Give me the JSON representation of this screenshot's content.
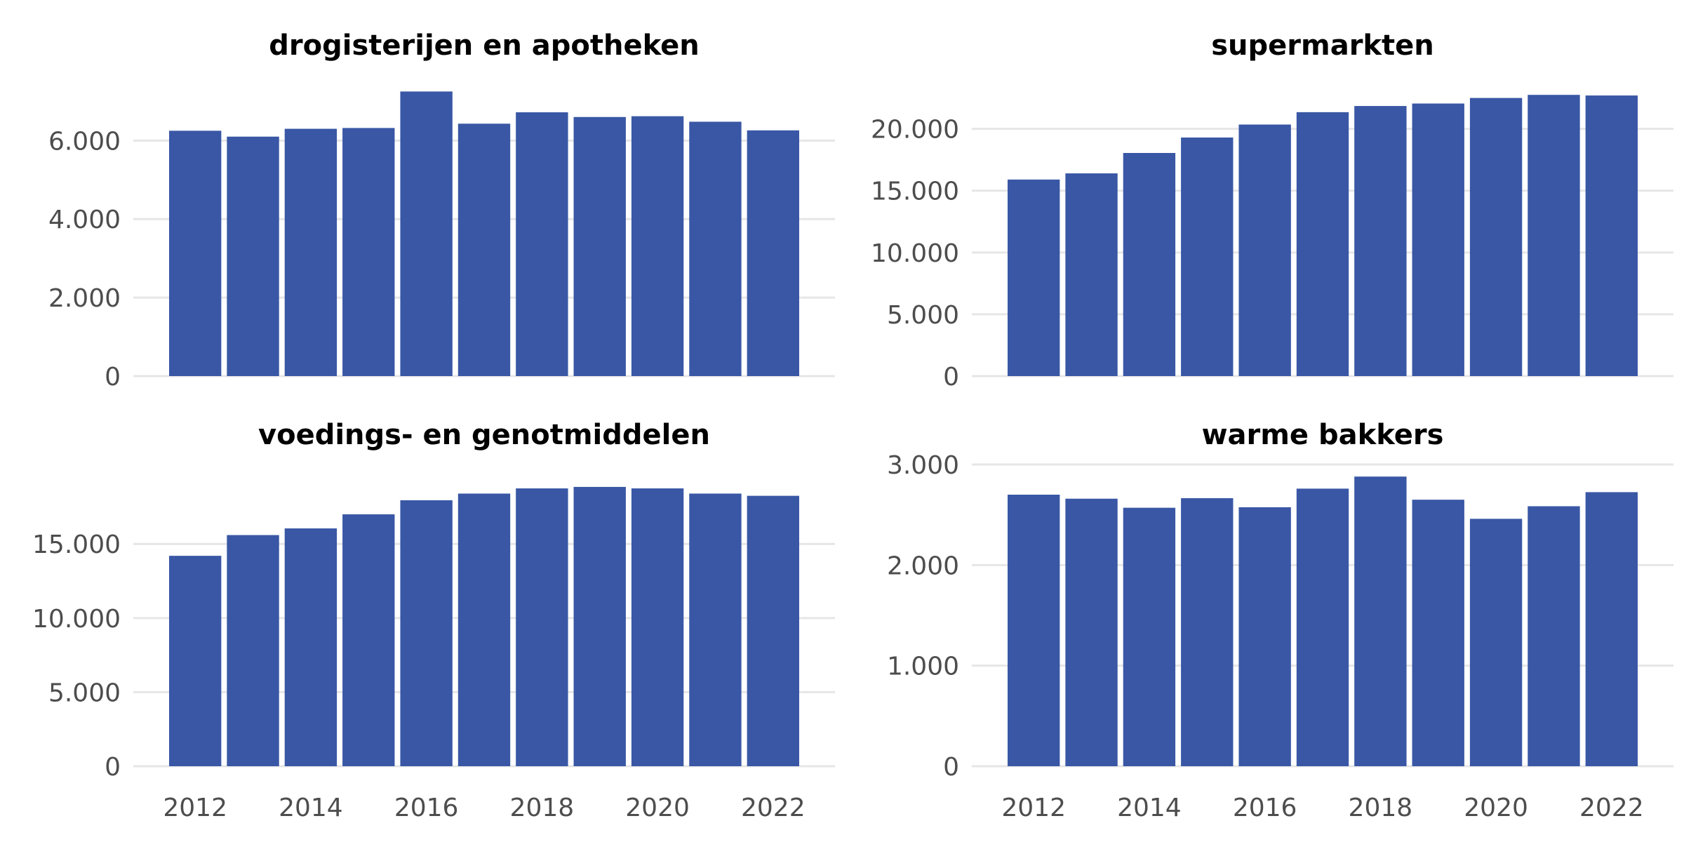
{
  "chart_data": [
    {
      "type": "bar",
      "title": "drogisterijen en apotheken",
      "categories": [
        2012,
        2013,
        2014,
        2015,
        2016,
        2017,
        2018,
        2019,
        2020,
        2021,
        2022
      ],
      "values": [
        6250,
        6100,
        6300,
        6320,
        7250,
        6430,
        6720,
        6600,
        6620,
        6480,
        6260
      ],
      "ylim": [
        0,
        7400
      ],
      "yticks": [
        0,
        2000,
        4000,
        6000
      ],
      "ytick_labels": [
        "0",
        "2.000",
        "4.000",
        "6.000"
      ],
      "xticks": [
        2012,
        2014,
        2016,
        2018,
        2020,
        2022
      ],
      "xtick_labels": [
        "2012",
        "2014",
        "2016",
        "2018",
        "2020",
        "2022"
      ],
      "show_xticks": false,
      "color": "#3957a5",
      "grid": true
    },
    {
      "type": "bar",
      "title": "supermarkten",
      "categories": [
        2012,
        2013,
        2014,
        2015,
        2016,
        2017,
        2018,
        2019,
        2020,
        2021,
        2022
      ],
      "values": [
        15900,
        16400,
        18050,
        19300,
        20350,
        21350,
        21850,
        22050,
        22500,
        22750,
        22700
      ],
      "ylim": [
        0,
        23500
      ],
      "yticks": [
        0,
        5000,
        10000,
        15000,
        20000
      ],
      "ytick_labels": [
        "0",
        "5.000",
        "10.000",
        "15.000",
        "20.000"
      ],
      "xticks": [
        2012,
        2014,
        2016,
        2018,
        2020,
        2022
      ],
      "xtick_labels": [
        "2012",
        "2014",
        "2016",
        "2018",
        "2020",
        "2022"
      ],
      "show_xticks": false,
      "color": "#3957a5",
      "grid": true
    },
    {
      "type": "bar",
      "title": "voedings- en genotmiddelen",
      "categories": [
        2012,
        2013,
        2014,
        2015,
        2016,
        2017,
        2018,
        2019,
        2020,
        2021,
        2022
      ],
      "values": [
        14200,
        15600,
        16050,
        17000,
        17950,
        18400,
        18750,
        18850,
        18750,
        18400,
        18250
      ],
      "ylim": [
        0,
        19700
      ],
      "yticks": [
        0,
        5000,
        10000,
        15000
      ],
      "ytick_labels": [
        "0",
        "5.000",
        "10.000",
        "15.000"
      ],
      "xticks": [
        2012,
        2014,
        2016,
        2018,
        2020,
        2022
      ],
      "xtick_labels": [
        "2012",
        "2014",
        "2016",
        "2018",
        "2020",
        "2022"
      ],
      "show_xticks": true,
      "color": "#3957a5",
      "grid": true
    },
    {
      "type": "bar",
      "title": "warme bakkers",
      "categories": [
        2012,
        2013,
        2014,
        2015,
        2016,
        2017,
        2018,
        2019,
        2020,
        2021,
        2022
      ],
      "values": [
        2700,
        2660,
        2570,
        2665,
        2575,
        2760,
        2880,
        2650,
        2460,
        2585,
        2725
      ],
      "ylim": [
        0,
        3000
      ],
      "yticks": [
        0,
        1000,
        2000,
        3000
      ],
      "ytick_labels": [
        "0",
        "1.000",
        "2.000",
        "3.000"
      ],
      "xticks": [
        2012,
        2014,
        2016,
        2018,
        2020,
        2022
      ],
      "xtick_labels": [
        "2012",
        "2014",
        "2016",
        "2018",
        "2020",
        "2022"
      ],
      "show_xticks": true,
      "color": "#3957a5",
      "grid": true
    }
  ]
}
